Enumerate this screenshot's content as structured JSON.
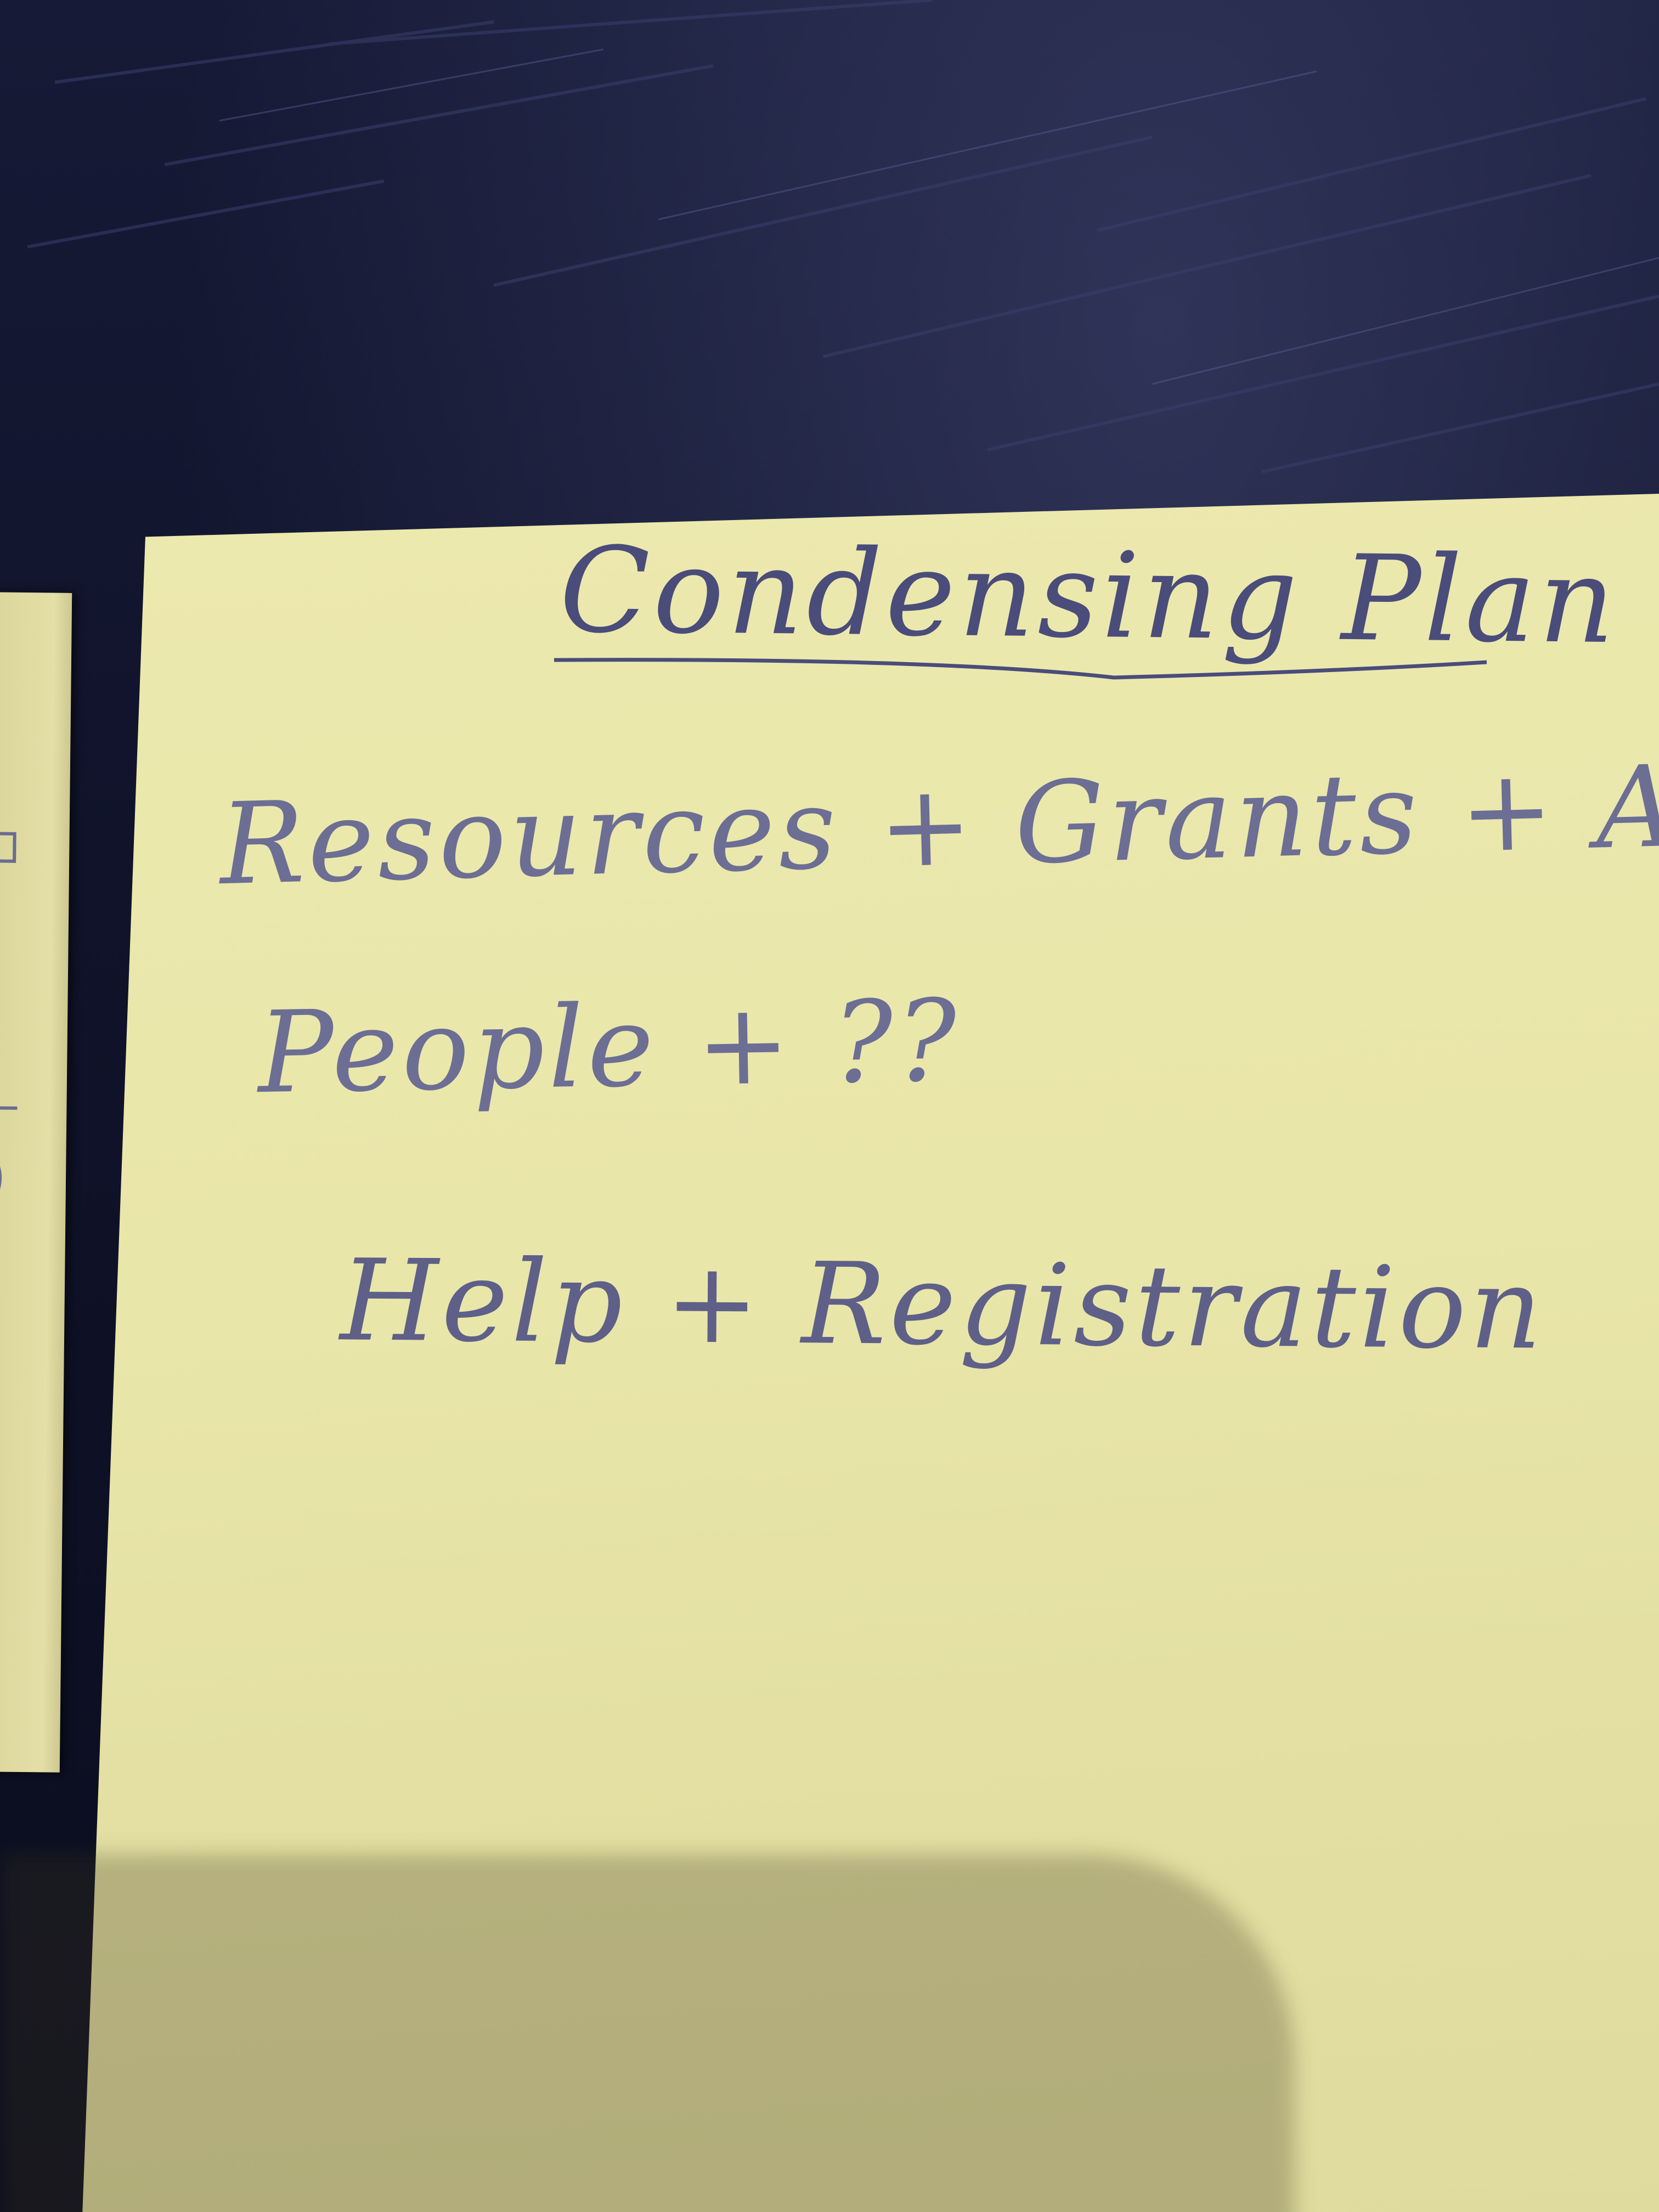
{
  "note": {
    "title": "Condensing Plan",
    "lines": [
      "Resources + Grants + About",
      "People + ??",
      "Help + Registration"
    ]
  },
  "colors": {
    "desk": "#10132a",
    "sticky_note": "#e9e6aa",
    "ink": "#5e6088"
  }
}
